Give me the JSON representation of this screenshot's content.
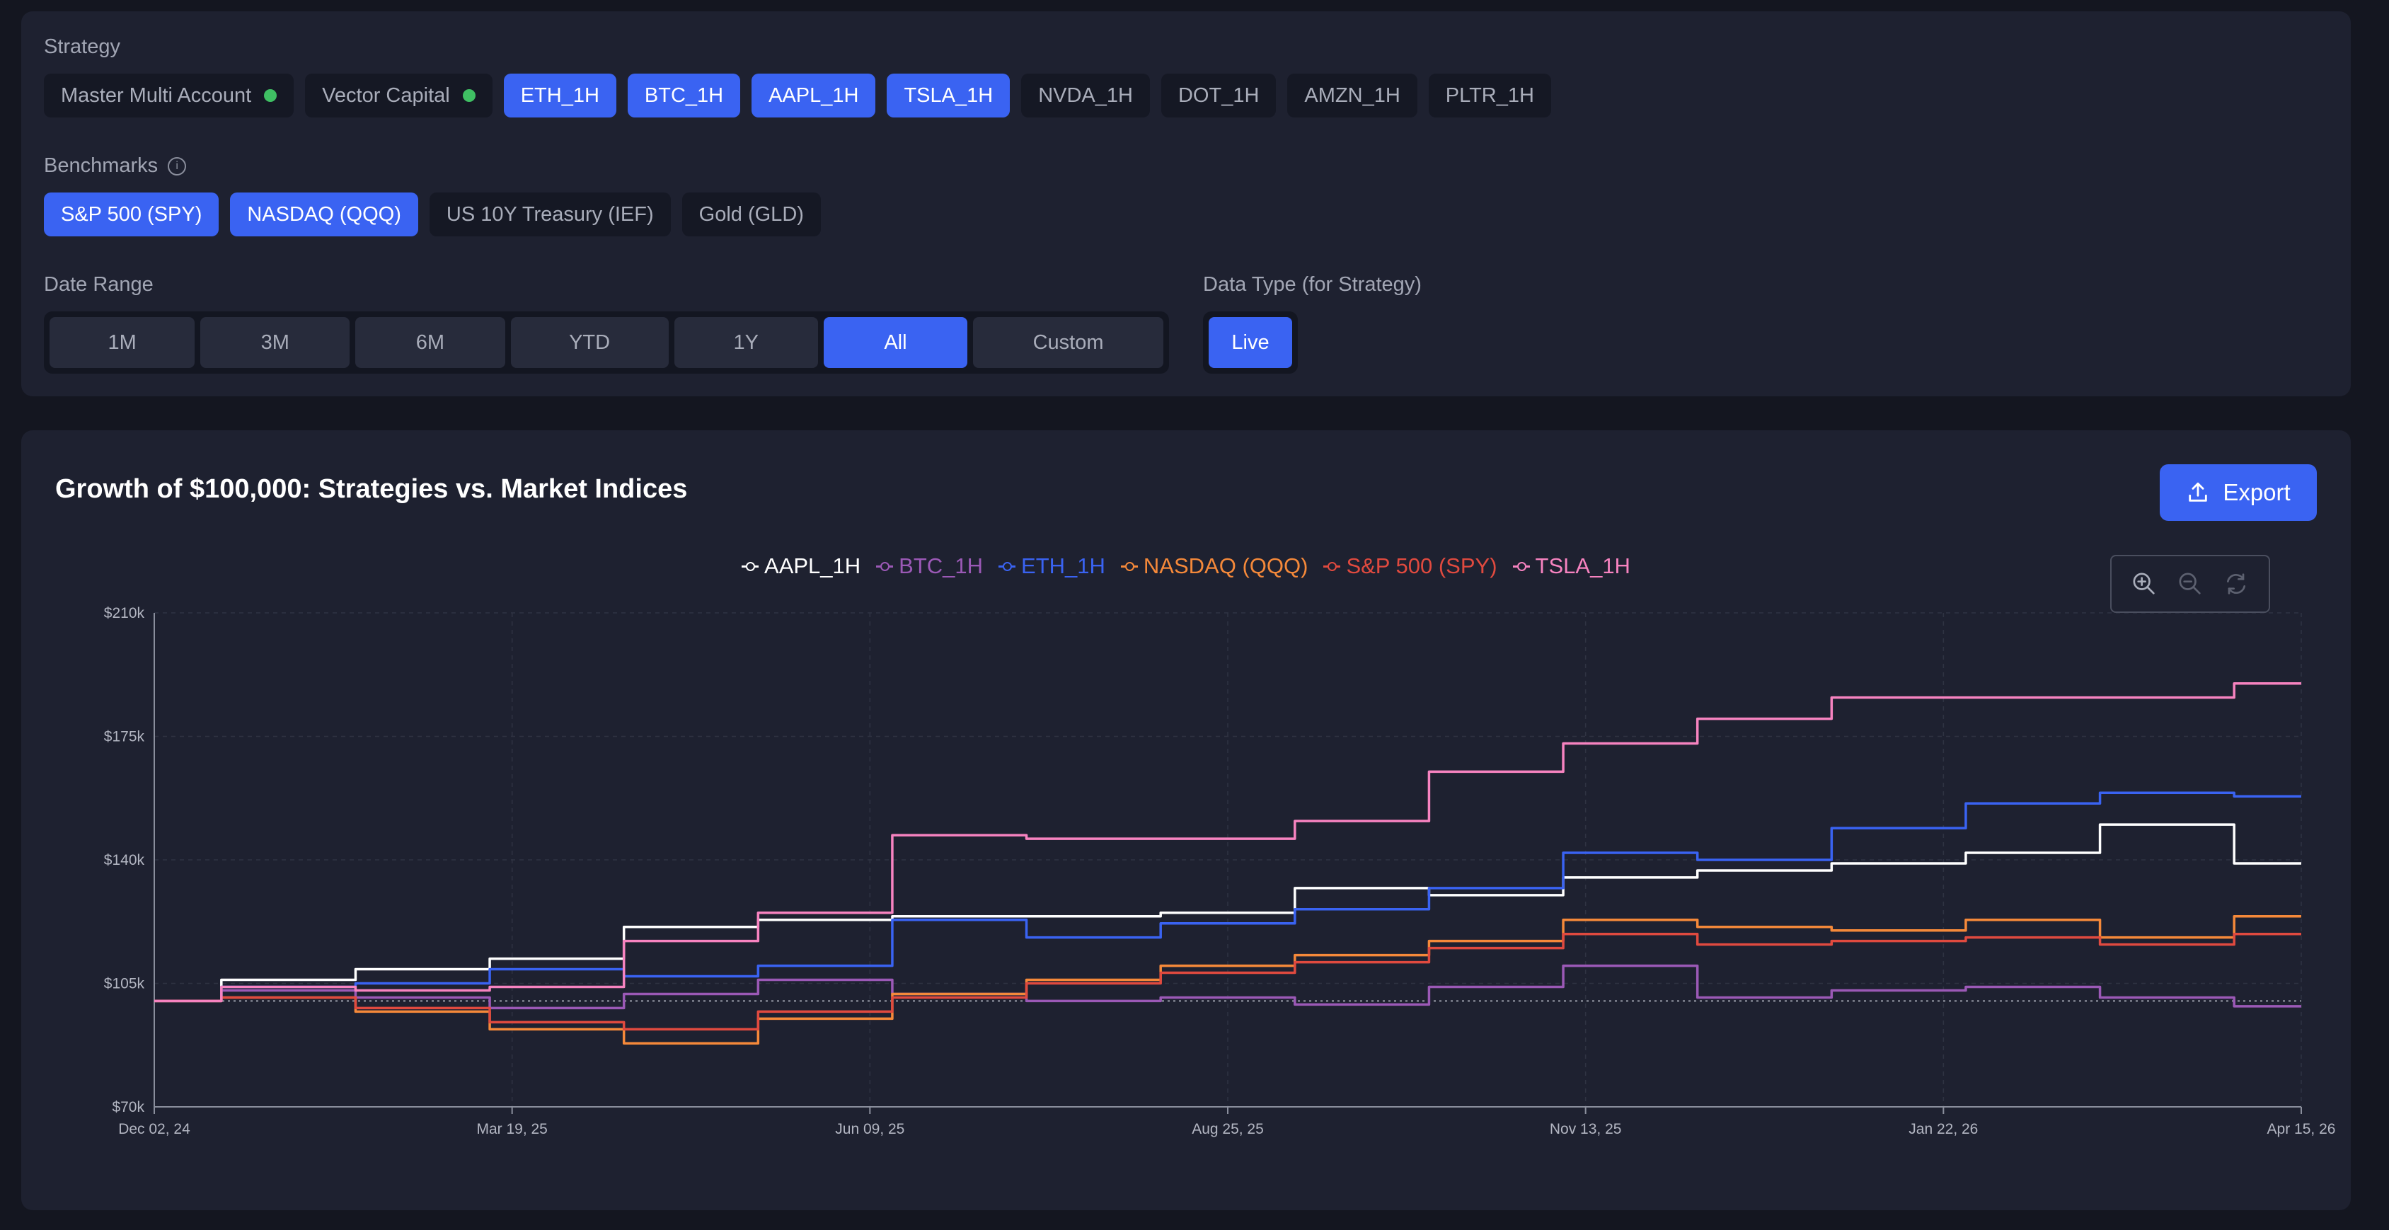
{
  "strategy": {
    "label": "Strategy",
    "chips": [
      {
        "label": "Master Multi Account",
        "active": false,
        "status_dot": true
      },
      {
        "label": "Vector Capital",
        "active": false,
        "status_dot": true
      },
      {
        "label": "ETH_1H",
        "active": true
      },
      {
        "label": "BTC_1H",
        "active": true
      },
      {
        "label": "AAPL_1H",
        "active": true
      },
      {
        "label": "TSLA_1H",
        "active": true
      },
      {
        "label": "NVDA_1H",
        "active": false
      },
      {
        "label": "DOT_1H",
        "active": false
      },
      {
        "label": "AMZN_1H",
        "active": false
      },
      {
        "label": "PLTR_1H",
        "active": false
      }
    ]
  },
  "benchmarks": {
    "label": "Benchmarks",
    "chips": [
      {
        "label": "S&P 500 (SPY)",
        "active": true
      },
      {
        "label": "NASDAQ (QQQ)",
        "active": true
      },
      {
        "label": "US 10Y Treasury (IEF)",
        "active": false
      },
      {
        "label": "Gold (GLD)",
        "active": false
      }
    ]
  },
  "date_range": {
    "label": "Date Range",
    "options": [
      {
        "label": "1M",
        "active": false
      },
      {
        "label": "3M",
        "active": false
      },
      {
        "label": "6M",
        "active": false
      },
      {
        "label": "YTD",
        "active": false
      },
      {
        "label": "1Y",
        "active": false
      },
      {
        "label": "All",
        "active": true
      },
      {
        "label": "Custom",
        "active": false
      }
    ]
  },
  "data_type": {
    "label": "Data Type (for Strategy)",
    "options": [
      {
        "label": "Live",
        "active": true
      }
    ]
  },
  "chart_panel": {
    "title": "Growth of $100,000: Strategies vs. Market Indices",
    "export_label": "Export",
    "toolbox_icons": [
      "zoom-in-icon",
      "zoom-out-icon",
      "reset-icon"
    ]
  },
  "chart_data": {
    "type": "line",
    "title": "Growth of $100,000: Strategies vs. Market Indices",
    "xlabel": "",
    "ylabel": "",
    "x_ticks": [
      "Dec 02, 24",
      "Mar 19, 25",
      "Jun 09, 25",
      "Aug 25, 25",
      "Nov 13, 25",
      "Jan 22, 26",
      "Apr 15, 26"
    ],
    "x": [
      "Dec 02, 24",
      "Jan 05, 25",
      "Feb 05, 25",
      "Mar 05, 25",
      "Apr 05, 25",
      "May 05, 25",
      "Jun 05, 25",
      "Jul 05, 25",
      "Aug 05, 25",
      "Sep 05, 25",
      "Oct 05, 25",
      "Nov 05, 25",
      "Dec 05, 25",
      "Jan 05, 26",
      "Feb 05, 26",
      "Mar 05, 26",
      "Apr 15, 26"
    ],
    "ylim": [
      70000,
      210000
    ],
    "y_ticks": [
      "$70k",
      "$105k",
      "$140k",
      "$175k",
      "$210k"
    ],
    "y_tick_values": [
      70000,
      105000,
      140000,
      175000,
      210000
    ],
    "baseline": 100000,
    "grid": true,
    "legend_position": "top-center",
    "series": [
      {
        "name": "AAPL_1H",
        "color": "#ffffff",
        "values": [
          100000,
          106000,
          109000,
          112000,
          121000,
          123000,
          124000,
          124000,
          125000,
          132000,
          130000,
          135000,
          137000,
          139000,
          142000,
          150000,
          139000
        ]
      },
      {
        "name": "BTC_1H",
        "color": "#9b59b6",
        "values": [
          100000,
          103000,
          101000,
          98000,
          102000,
          106000,
          102000,
          100000,
          101000,
          99000,
          104000,
          110000,
          101000,
          103000,
          104000,
          101000,
          98500
        ]
      },
      {
        "name": "ETH_1H",
        "color": "#3a63f2",
        "values": [
          100000,
          104000,
          105000,
          109000,
          107000,
          110000,
          123000,
          118000,
          122000,
          126000,
          132000,
          142000,
          140000,
          149000,
          156000,
          159000,
          158000
        ]
      },
      {
        "name": "NASDAQ (QQQ)",
        "color": "#f5893a",
        "values": [
          100000,
          101000,
          97000,
          92000,
          88000,
          95000,
          102000,
          106000,
          110000,
          113000,
          117000,
          123000,
          121000,
          120000,
          123000,
          118000,
          124000
        ]
      },
      {
        "name": "S&P 500 (SPY)",
        "color": "#e04a3f",
        "values": [
          100000,
          101000,
          98000,
          94000,
          92000,
          97000,
          101000,
          105000,
          108000,
          111000,
          115000,
          119000,
          116000,
          117000,
          118000,
          116000,
          119000
        ]
      },
      {
        "name": "TSLA_1H",
        "color": "#f783c0",
        "values": [
          100000,
          104000,
          103000,
          104000,
          117000,
          125000,
          147000,
          146000,
          146000,
          151000,
          165000,
          173000,
          180000,
          186000,
          186000,
          186000,
          190000
        ]
      }
    ]
  }
}
